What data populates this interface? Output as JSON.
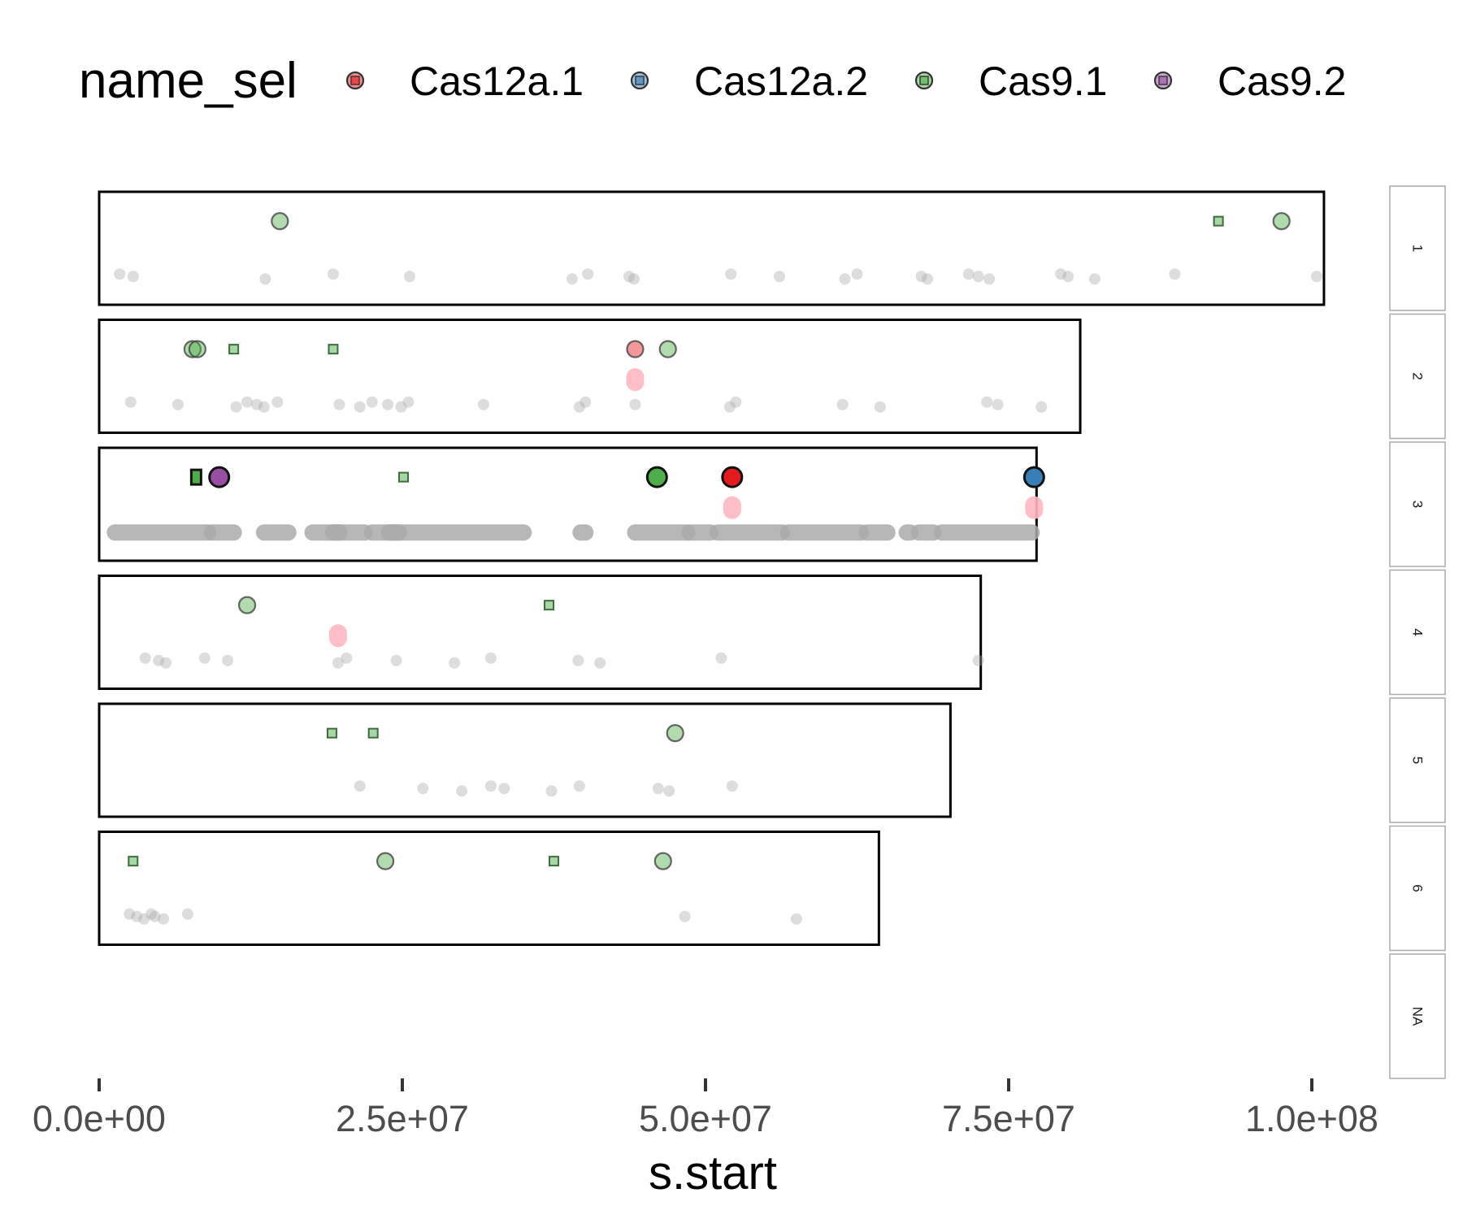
{
  "colors": {
    "Cas12a.1": "#e41a1c",
    "Cas12a.2": "#377eb8",
    "Cas9.1": "#4daf4a",
    "Cas9.2": "#984ea3",
    "background_points": "#aaaaaa",
    "highlight_pink": "#ffb6c1",
    "panel_border": "#000000",
    "strip_border": "#aaaaaa"
  },
  "chart_data": {
    "type": "scatter",
    "title": "",
    "xlabel": "s.start",
    "ylabel": "",
    "xlim": [
      0,
      101000000
    ],
    "x_ticks": [
      0,
      25000000,
      50000000,
      75000000,
      100000000
    ],
    "x_tick_labels": [
      "0.0e+00",
      "2.5e+07",
      "5.0e+07",
      "7.5e+07",
      "1.0e+08"
    ],
    "grid": false,
    "legend": {
      "position": "top",
      "title": "name_sel",
      "entries": [
        "Cas12a.1",
        "Cas12a.2",
        "Cas9.1",
        "Cas9.2"
      ]
    },
    "facets": [
      {
        "label": "1",
        "length": 101000000,
        "marks": [
          {
            "name": "Cas9.1",
            "shape": "circle",
            "x": 14900000,
            "row": 1
          },
          {
            "name": "Cas9.1",
            "shape": "square",
            "x": 92300000,
            "row": 1
          },
          {
            "name": "Cas9.1",
            "shape": "circle",
            "x": 97500000,
            "row": 1
          }
        ],
        "background": [
          1700000,
          2800000,
          13700000,
          19300000,
          25600000,
          39000000,
          40300000,
          43700000,
          44100000,
          52100000,
          56100000,
          61500000,
          62500000,
          67800000,
          68300000,
          71700000,
          72500000,
          73400000,
          79300000,
          79900000,
          82100000,
          88700000,
          100400000
        ]
      },
      {
        "label": "2",
        "length": 80900000,
        "marks": [
          {
            "name": "Cas9.1",
            "shape": "circle",
            "x": 7700000,
            "row": 1
          },
          {
            "name": "Cas9.1",
            "shape": "circle",
            "x": 8100000,
            "row": 1
          },
          {
            "name": "Cas9.1",
            "shape": "square",
            "x": 11100000,
            "row": 1
          },
          {
            "name": "Cas9.1",
            "shape": "square",
            "x": 19300000,
            "row": 1
          },
          {
            "name": "Cas12a.1",
            "shape": "circle",
            "x": 44200000,
            "row": 1
          },
          {
            "name": "Cas9.1",
            "shape": "circle",
            "x": 46900000,
            "row": 1
          },
          {
            "name": "Cas12a.1",
            "shape": "pink",
            "x": 44200000,
            "row": 2
          }
        ],
        "background": [
          2600000,
          6500000,
          11300000,
          12200000,
          13000000,
          13600000,
          14700000,
          19800000,
          21500000,
          22500000,
          23800000,
          24900000,
          25500000,
          31700000,
          39600000,
          40100000,
          44200000,
          52000000,
          52500000,
          61300000,
          64400000,
          73200000,
          74100000,
          77700000
        ]
      },
      {
        "label": "3",
        "length": 77300000,
        "marks": [
          {
            "name": "Cas9.1",
            "shape": "square-dark",
            "x": 8000000,
            "row": 1
          },
          {
            "name": "Cas9.2",
            "shape": "circle-dark",
            "x": 9900000,
            "row": 1
          },
          {
            "name": "Cas9.1",
            "shape": "square",
            "x": 25100000,
            "row": 1
          },
          {
            "name": "Cas9.1",
            "shape": "circle-dark",
            "x": 46000000,
            "row": 1
          },
          {
            "name": "Cas12a.1",
            "shape": "circle-dark",
            "x": 52200000,
            "row": 1
          },
          {
            "name": "Cas12a.2",
            "shape": "circle-dark",
            "x": 77100000,
            "row": 1
          },
          {
            "name": "Cas12a.1",
            "shape": "pink",
            "x": 52200000,
            "row": 2
          },
          {
            "name": "Cas12a.2",
            "shape": "pink",
            "x": 77100000,
            "row": 2
          }
        ],
        "background_band": [
          [
            1300000,
            9000000
          ],
          [
            9300000,
            11100000
          ],
          [
            13600000,
            15600000
          ],
          [
            17600000,
            19800000
          ],
          [
            19300000,
            21900000
          ],
          [
            22500000,
            24700000
          ],
          [
            23900000,
            35000000
          ],
          [
            39700000,
            40100000
          ],
          [
            44200000,
            48500000
          ],
          [
            48700000,
            50400000
          ],
          [
            51000000,
            56300000
          ],
          [
            56800000,
            62800000
          ],
          [
            63300000,
            65000000
          ],
          [
            66600000,
            66900000
          ],
          [
            67600000,
            68800000
          ],
          [
            69500000,
            76900000
          ]
        ]
      },
      {
        "label": "4",
        "length": 72700000,
        "marks": [
          {
            "name": "Cas9.1",
            "shape": "circle",
            "x": 12200000,
            "row": 1
          },
          {
            "name": "Cas9.1",
            "shape": "square",
            "x": 37100000,
            "row": 1
          },
          {
            "name": "Cas12a.1",
            "shape": "pink",
            "x": 19700000,
            "row": 2
          }
        ],
        "background": [
          3800000,
          4900000,
          5500000,
          8700000,
          10600000,
          19700000,
          20400000,
          24500000,
          29300000,
          32300000,
          39500000,
          41300000,
          51300000,
          72500000
        ]
      },
      {
        "label": "5",
        "length": 70200000,
        "marks": [
          {
            "name": "Cas9.1",
            "shape": "square",
            "x": 19200000,
            "row": 1
          },
          {
            "name": "Cas9.1",
            "shape": "square",
            "x": 22600000,
            "row": 1
          },
          {
            "name": "Cas9.1",
            "shape": "circle",
            "x": 47500000,
            "row": 1
          }
        ],
        "background": [
          21500000,
          26700000,
          29900000,
          32300000,
          33400000,
          37300000,
          39600000,
          46100000,
          47000000,
          52200000
        ]
      },
      {
        "label": "6",
        "length": 64300000,
        "marks": [
          {
            "name": "Cas9.1",
            "shape": "square",
            "x": 2800000,
            "row": 1
          },
          {
            "name": "Cas9.1",
            "shape": "circle",
            "x": 23600000,
            "row": 1
          },
          {
            "name": "Cas9.1",
            "shape": "square",
            "x": 37500000,
            "row": 1
          },
          {
            "name": "Cas9.1",
            "shape": "circle",
            "x": 46500000,
            "row": 1
          }
        ],
        "background": [
          2500000,
          3100000,
          3700000,
          4300000,
          4600000,
          5300000,
          7300000,
          48300000,
          57500000
        ]
      },
      {
        "label": "NA",
        "length": 0,
        "marks": [],
        "background": []
      }
    ]
  }
}
